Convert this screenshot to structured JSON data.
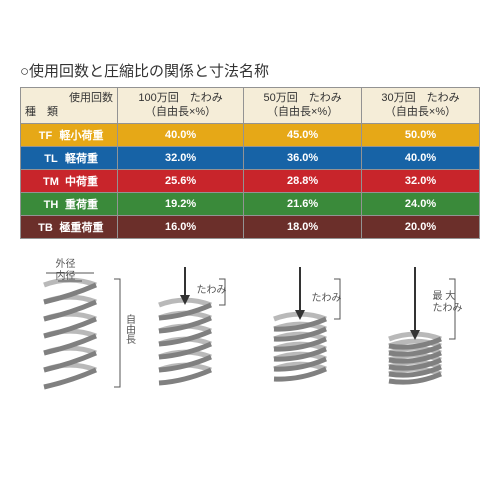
{
  "title": "○使用回数と圧縮比の関係と寸法名称",
  "header": {
    "type_top": "使用回数",
    "type_bottom": "種　類",
    "col1_top": "100万回　たわみ",
    "col1_bot": "（自由長×%）",
    "col2_top": "50万回　たわみ",
    "col2_bot": "（自由長×%）",
    "col3_top": "30万回　たわみ",
    "col3_bot": "（自由長×%）"
  },
  "rows": [
    {
      "code": "TF",
      "name": "軽小荷重",
      "v1": "40.0%",
      "v2": "45.0%",
      "v3": "50.0%",
      "bg": "#e6a817"
    },
    {
      "code": "TL",
      "name": "軽荷重",
      "v1": "32.0%",
      "v2": "36.0%",
      "v3": "40.0%",
      "bg": "#1763a6"
    },
    {
      "code": "TM",
      "name": "中荷重",
      "v1": "25.6%",
      "v2": "28.8%",
      "v3": "32.0%",
      "bg": "#c8252b"
    },
    {
      "code": "TH",
      "name": "重荷重",
      "v1": "19.2%",
      "v2": "21.6%",
      "v3": "24.0%",
      "bg": "#3a8a3a"
    },
    {
      "code": "TB",
      "name": "極重荷重",
      "v1": "16.0%",
      "v2": "18.0%",
      "v3": "20.0%",
      "bg": "#6b2f2a"
    }
  ],
  "diagram_labels": {
    "outer": "外径",
    "inner": "内径",
    "free_len": "自由長",
    "deflection": "たわみ",
    "max_deflection": "最 大\nたわみ"
  },
  "colors": {
    "header_bg": "#f5edd8",
    "border": "#939393",
    "spring_stroke": "#808080",
    "spring_fill": "#d0d0d0",
    "arrow": "#333333"
  }
}
